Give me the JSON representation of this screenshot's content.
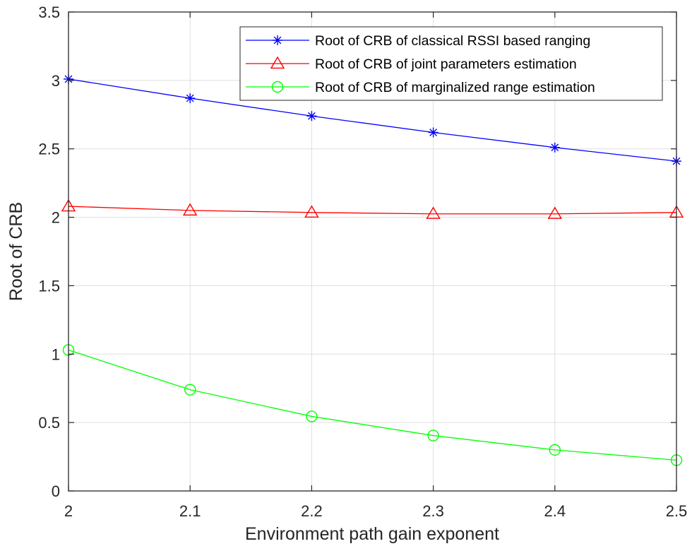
{
  "chart_data": {
    "type": "line",
    "title": "",
    "xlabel": "Environment path gain exponent",
    "ylabel": "Root of CRB",
    "x": [
      2,
      2.1,
      2.2,
      2.3,
      2.4,
      2.5
    ],
    "xlim": [
      2,
      2.5
    ],
    "ylim": [
      0,
      3.5
    ],
    "xticks": [
      "2",
      "2.1",
      "2.2",
      "2.3",
      "2.4",
      "2.5"
    ],
    "yticks": [
      "0",
      "0.5",
      "1",
      "1.5",
      "2",
      "2.5",
      "3",
      "3.5"
    ],
    "grid": true,
    "legend_position": "top-right",
    "series": [
      {
        "name": "Root of CRB of classical RSSI based ranging",
        "values": [
          3.01,
          2.87,
          2.74,
          2.62,
          2.51,
          2.41
        ],
        "color": "#0000ff",
        "marker": "asterisk"
      },
      {
        "name": "Root of CRB of joint parameters estimation",
        "values": [
          2.08,
          2.05,
          2.035,
          2.025,
          2.025,
          2.035
        ],
        "color": "#ff0000",
        "marker": "triangle"
      },
      {
        "name": "Root of CRB of marginalized range estimation",
        "values": [
          1.03,
          0.74,
          0.545,
          0.405,
          0.3,
          0.225
        ],
        "color": "#00ff00",
        "marker": "circle"
      }
    ]
  }
}
